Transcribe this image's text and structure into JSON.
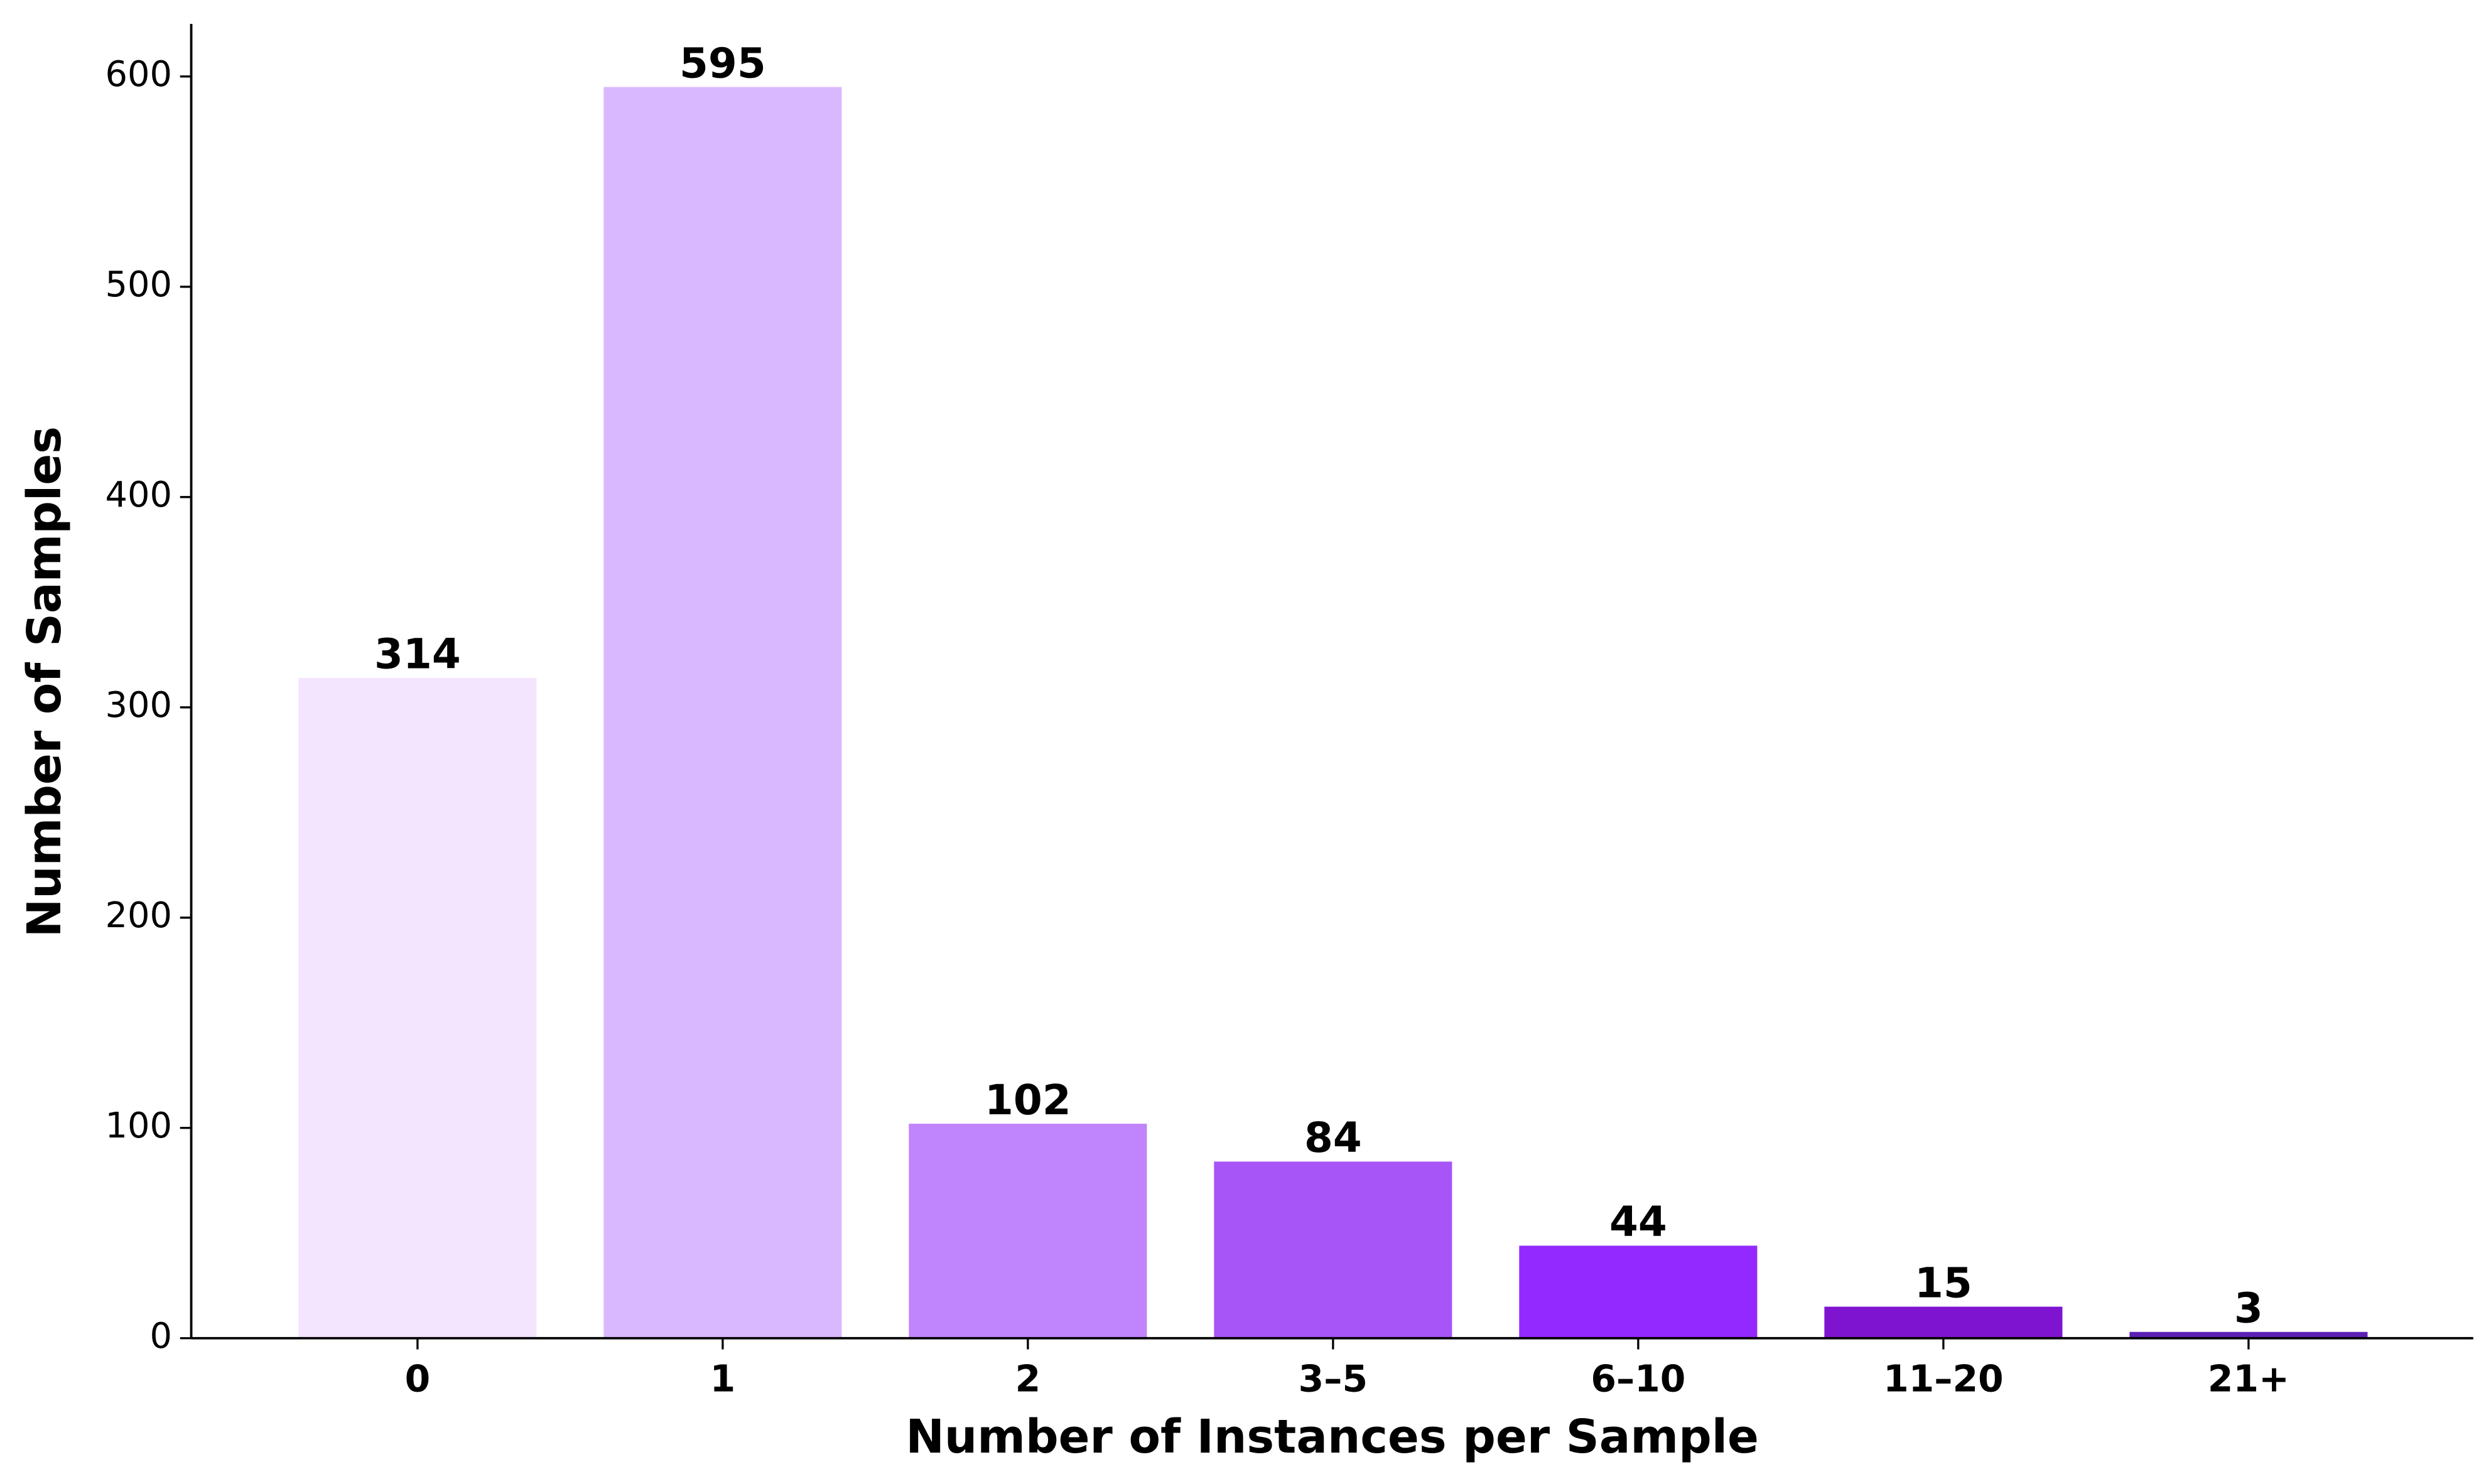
{
  "chart_data": {
    "type": "bar",
    "xlabel": "Number of Instances per Sample",
    "ylabel": "Number of Samples",
    "categories": [
      "0",
      "1",
      "2",
      "3–5",
      "6–10",
      "11–20",
      "21+"
    ],
    "values": [
      314,
      595,
      102,
      84,
      44,
      15,
      3
    ],
    "colors": [
      "#f3e5fd",
      "#dab8ff",
      "#c084fc",
      "#a855f7",
      "#9328ff",
      "#7e14d0",
      "#5b21b6"
    ],
    "ylim": [
      0,
      625
    ],
    "yticks": [
      0,
      100,
      200,
      300,
      400,
      500,
      600
    ],
    "grid": false
  }
}
